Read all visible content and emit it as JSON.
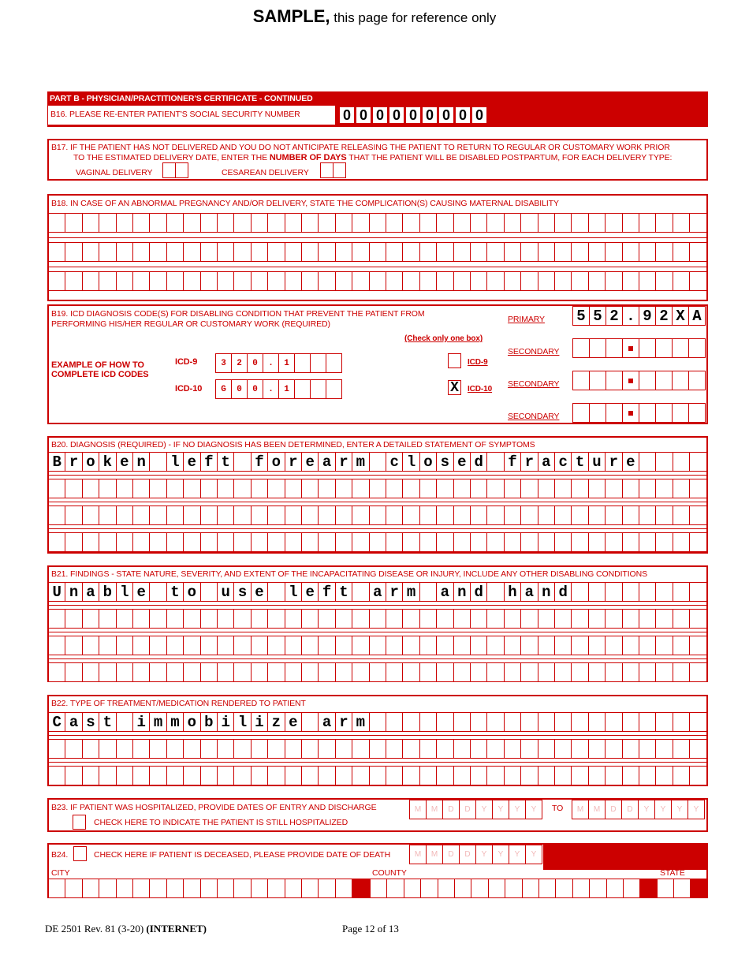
{
  "title": {
    "bold": "SAMPLE,",
    "rest": " this page for reference only"
  },
  "part_b": {
    "header": "PART B - PHYSICIAN/PRACTITIONER'S CERTIFICATE - CONTINUED"
  },
  "b16": {
    "label": "B16.  PLEASE RE-ENTER PATIENT'S SOCIAL SECURITY NUMBER",
    "ssn": "000000000"
  },
  "b17": {
    "line1": "B17.  IF THE PATIENT HAS NOT DELIVERED AND YOU DO NOT ANTICIPATE RELEASING THE PATIENT TO RETURN TO REGULAR OR CUSTOMARY WORK PRIOR",
    "line2a": "TO THE ESTIMATED DELIVERY DATE, ENTER THE ",
    "line2b": "NUMBER OF DAYS",
    "line2c": " THAT THE PATIENT WILL BE DISABLED POSTPARTUM, FOR EACH DELIVERY TYPE:",
    "vaginal": "VAGINAL DELIVERY",
    "cesarean": "CESAREAN DELIVERY",
    "vaginal_value": "",
    "cesarean_value": ""
  },
  "b18": {
    "label": "B18.  IN CASE OF AN ABNORMAL PREGNANCY AND/OR DELIVERY, STATE THE COMPLICATION(S) CAUSING MATERNAL DISABILITY",
    "rows": [
      "",
      "",
      ""
    ]
  },
  "b19": {
    "line1": "B19.  ICD DIAGNOSIS CODE(S) FOR DISABLING CONDITION THAT PREVENT THE PATIENT FROM",
    "line2": "PERFORMING HIS/HER REGULAR OR CUSTOMARY WORK (REQUIRED)",
    "check_note": "(Check only one box)",
    "example1": "EXAMPLE OF HOW TO",
    "example2": "COMPLETE ICD CODES",
    "icd9_label": "ICD-9",
    "icd10_label": "ICD-10",
    "icd9_example": "320.1",
    "icd10_example": "G00.1",
    "icd9_checked": false,
    "icd10_checked": true,
    "check_mark": "X",
    "primary": "PRIMARY",
    "secondary": "SECONDARY",
    "primary_code": "552.92XA",
    "secondary_codes": [
      "   .    ",
      "   .    ",
      "   .    "
    ]
  },
  "b20": {
    "label": "B20.  DIAGNOSIS (REQUIRED) - IF NO DIAGNOSIS HAS BEEN DETERMINED, ENTER A DETAILED STATEMENT OF SYMPTOMS",
    "rows": [
      "Broken left forearm closed fracture",
      "",
      "",
      ""
    ]
  },
  "b21": {
    "label": "B21.  FINDINGS - STATE NATURE, SEVERITY, AND EXTENT OF THE INCAPACITATING DISEASE OR INJURY, INCLUDE ANY OTHER DISABLING CONDITIONS",
    "rows": [
      "Unable to use left arm and hand",
      "",
      "",
      ""
    ]
  },
  "b22": {
    "label": "B22.  TYPE OF TREATMENT/MEDICATION RENDERED TO PATIENT",
    "rows": [
      "Cast immobilize arm",
      "",
      ""
    ]
  },
  "b23": {
    "label": "B23.  IF PATIENT WAS HOSPITALIZED, PROVIDE DATES OF ENTRY AND DISCHARGE",
    "to": "TO",
    "still": "CHECK HERE TO INDICATE THE PATIENT IS STILL HOSPITALIZED",
    "date_placeholder": "MMDDYYYY"
  },
  "b24": {
    "prefix": "B24.",
    "label": "CHECK HERE IF PATIENT IS DECEASED, PLEASE PROVIDE DATE OF DEATH",
    "city": "CITY",
    "county": "COUNTY",
    "state": "STATE",
    "date_placeholder": "MMDDYYYY"
  },
  "footer": {
    "form": "DE 2501 Rev. 81 (3-20) ",
    "internet": "(INTERNET)",
    "page": "Page 12 of 13"
  },
  "colors": {
    "accent": "#cc0000"
  }
}
